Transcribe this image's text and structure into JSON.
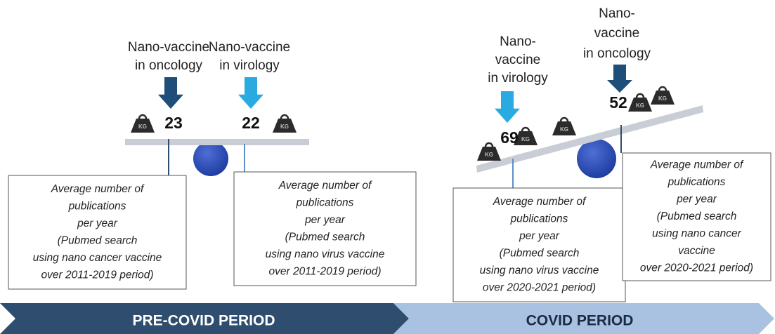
{
  "weight_label": "KG",
  "panels": [
    {
      "period": "PRE-COVID PERIOD",
      "groups": [
        {
          "label": [
            "Nano-vaccine",
            "in oncology"
          ],
          "count": 23,
          "box": [
            "Average number of",
            "publications",
            "per year",
            "(Pubmed search",
            "using nano cancer vaccine",
            "over 2011-2019 period)"
          ]
        },
        {
          "label": [
            "Nano-vaccine",
            "in virology"
          ],
          "count": 22,
          "box": [
            "Average number of",
            "publications",
            "per year",
            "(Pubmed search",
            "using nano virus vaccine",
            "over 2011-2019 period)"
          ]
        }
      ]
    },
    {
      "period": "COVID PERIOD",
      "groups": [
        {
          "label": [
            "Nano-",
            "vaccine",
            "in virology"
          ],
          "count": 69,
          "box": [
            "Average number of",
            "publications",
            "per year",
            "(Pubmed search",
            "using nano virus vaccine",
            "over 2020-2021 period)"
          ]
        },
        {
          "label": [
            "Nano-",
            "vaccine",
            "in oncology"
          ],
          "count": 52,
          "box": [
            "Average number of",
            "publications",
            "per year",
            "(Pubmed search",
            "using nano cancer",
            "vaccine",
            "over 2020-2021 period)"
          ]
        }
      ]
    }
  ]
}
